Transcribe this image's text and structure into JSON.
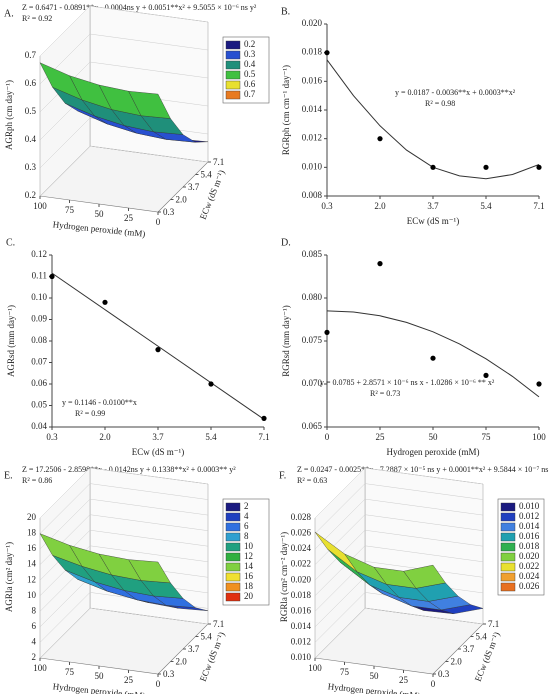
{
  "chart_data": [
    {
      "type": "surface3d",
      "label": "A.",
      "equation": "Z = 0.6471 - 0.0891**x - 0.0004ns y + 0.0051**x² + 9.5055 × 10⁻⁶ ns y²",
      "r2": "R² = 0.92",
      "xlabel": "Hydrogen peroxide (mM)",
      "ylabel": "ECw (dS m⁻¹)",
      "zlabel": "AGRph (cm day⁻¹)",
      "x": [
        0,
        25,
        50,
        75,
        100
      ],
      "y": [
        0.3,
        2.0,
        3.7,
        5.4,
        7.1
      ],
      "z": [
        [
          0.621,
          0.489,
          0.387,
          0.315,
          0.272
        ],
        [
          0.617,
          0.485,
          0.383,
          0.311,
          0.268
        ],
        [
          0.625,
          0.493,
          0.391,
          0.319,
          0.275
        ],
        [
          0.644,
          0.513,
          0.411,
          0.338,
          0.295
        ],
        [
          0.676,
          0.544,
          0.442,
          0.37,
          0.327
        ]
      ],
      "xlim": [
        0,
        100
      ],
      "xticks": [
        0,
        25,
        50,
        75,
        100
      ],
      "ylim": [
        0.3,
        7.1
      ],
      "yticks": [
        0.3,
        {
          "value": 2.0,
          "label": "2.0"
        },
        3.7,
        5.4,
        7.1
      ],
      "zlim": [
        0.2,
        0.7
      ],
      "zticks": [
        0.2,
        0.3,
        0.4,
        0.5,
        0.6,
        0.7
      ],
      "legend": {
        "levels": [
          0.2,
          0.3,
          0.4,
          0.5,
          0.6,
          0.7
        ],
        "colors": [
          "#1a1a80",
          "#2850d0",
          "#1f8f7a",
          "#40c040",
          "#e8e030",
          "#e87a20"
        ]
      }
    },
    {
      "type": "scatter",
      "label": "B.",
      "equation": "y = 0.0187 - 0.0036**x + 0.0003**x²",
      "r2": "R² = 0.98",
      "xlabel": "ECw (dS m⁻¹)",
      "ylabel": "RGRph (cm cm⁻¹ day⁻¹)",
      "x": [
        0.3,
        2.0,
        3.7,
        5.4,
        7.1
      ],
      "values": [
        0.018,
        0.012,
        0.01,
        0.01,
        0.01
      ],
      "fit": {
        "x": [
          0.3,
          1.15,
          2.0,
          2.85,
          3.7,
          4.55,
          5.4,
          6.25,
          7.1
        ],
        "y": [
          0.0175,
          0.015,
          0.0129,
          0.0112,
          0.01,
          0.0094,
          0.0092,
          0.0095,
          0.0102
        ]
      },
      "xlim": [
        0.3,
        7.1
      ],
      "xticks": [
        0.3,
        {
          "value": 2.0,
          "label": "2.0"
        },
        3.7,
        5.4,
        7.1
      ],
      "ylim": [
        0.008,
        0.02
      ],
      "yticks": [
        {
          "value": 0.008,
          "label": "0.008"
        },
        {
          "value": 0.01,
          "label": "0.010"
        },
        {
          "value": 0.012,
          "label": "0.012"
        },
        {
          "value": 0.014,
          "label": "0.014"
        },
        {
          "value": 0.016,
          "label": "0.016"
        },
        {
          "value": 0.018,
          "label": "0.018"
        },
        {
          "value": 0.02,
          "label": "0.020"
        }
      ]
    },
    {
      "type": "scatter",
      "label": "C.",
      "equation": "y = 0.1146 - 0.0100**x",
      "r2": "R² = 0.99",
      "xlabel": "ECw (dS m⁻¹)",
      "ylabel": "AGRsd (mm day⁻¹)",
      "x": [
        0.3,
        2.0,
        3.7,
        5.4,
        7.1
      ],
      "values": [
        0.11,
        0.098,
        0.076,
        0.06,
        0.044
      ],
      "fit": {
        "x": [
          0.3,
          7.1
        ],
        "y": [
          0.1116,
          0.0436
        ]
      },
      "xlim": [
        0.3,
        7.1
      ],
      "xticks": [
        0.3,
        {
          "value": 2.0,
          "label": "2.0"
        },
        3.7,
        5.4,
        7.1
      ],
      "ylim": [
        0.04,
        0.12
      ],
      "yticks": [
        0.04,
        0.05,
        0.06,
        0.07,
        0.08,
        0.09,
        {
          "value": 0.1,
          "label": "0.10"
        },
        0.11,
        0.12
      ]
    },
    {
      "type": "scatter",
      "label": "D.",
      "equation": "y = 0.0785 + 2.8571 × 10⁻⁶ ns x - 1.0286 × 10⁻⁶ ** x²",
      "r2": "R² = 0.73",
      "xlabel": "Hydrogen peroxide (mM)",
      "ylabel": "RGRsd (mm day⁻¹)",
      "x": [
        0,
        25,
        50,
        75,
        100
      ],
      "values": [
        0.076,
        0.084,
        0.073,
        0.071,
        0.07
      ],
      "fit": {
        "x": [
          0,
          12.5,
          25,
          37.5,
          50,
          62.5,
          75,
          87.5,
          100
        ],
        "y": [
          0.0785,
          0.07837,
          0.07793,
          0.07716,
          0.07607,
          0.07466,
          0.07293,
          0.07088,
          0.0685
        ]
      },
      "xlim": [
        0,
        100
      ],
      "xticks": [
        0,
        25,
        50,
        75,
        100
      ],
      "ylim": [
        0.065,
        0.085
      ],
      "yticks": [
        0.065,
        {
          "value": 0.07,
          "label": "0.070"
        },
        0.075,
        {
          "value": 0.08,
          "label": "0.080"
        },
        0.085
      ]
    },
    {
      "type": "surface3d",
      "label": "E.",
      "equation": "Z = 17.2506 - 2.8598**x - 0.0142ns y + 0.1338**x² + 0.0003** y²",
      "r2": "R² = 0.86",
      "xlabel": "Hydrogen peroxide (mM)",
      "ylabel": "ECw (dS m⁻¹)",
      "zlabel": "AGRla (cm² day⁻¹)",
      "x": [
        0,
        25,
        50,
        75,
        100
      ],
      "y": [
        0.3,
        2.0,
        3.7,
        5.4,
        7.1
      ],
      "z": [
        [
          16.4,
          12.1,
          8.5,
          5.7,
          3.7
        ],
        [
          16.2,
          11.9,
          8.3,
          5.5,
          3.5
        ],
        [
          16.4,
          12.1,
          8.5,
          5.7,
          3.7
        ],
        [
          17.0,
          12.7,
          9.1,
          6.3,
          4.3
        ],
        [
          18.0,
          13.6,
          10.1,
          7.3,
          5.3
        ]
      ],
      "xlim": [
        0,
        100
      ],
      "xticks": [
        0,
        25,
        50,
        75,
        100
      ],
      "ylim": [
        0.3,
        7.1
      ],
      "yticks": [
        0.3,
        {
          "value": 2.0,
          "label": "2.0"
        },
        3.7,
        5.4,
        7.1
      ],
      "zlim": [
        2,
        20
      ],
      "zticks": [
        2,
        4,
        6,
        8,
        10,
        12,
        14,
        16,
        18,
        20
      ],
      "legend": {
        "levels": [
          2,
          4,
          6,
          8,
          10,
          12,
          14,
          16,
          18,
          20
        ],
        "colors": [
          "#1a1a80",
          "#2040c0",
          "#3070e0",
          "#30a0d0",
          "#20a080",
          "#30b040",
          "#80d040",
          "#f0e030",
          "#f09020",
          "#e03010"
        ]
      }
    },
    {
      "type": "surface3d",
      "label": "F.",
      "equation": "Z = 0.0247 - 0.0025**x - 7.2887 × 10⁻⁵ ns y + 0.0001**x² + 9.5844 × 10⁻⁷ ns y²",
      "r2": "R² = 0.63",
      "xlabel": "Hydrogen peroxide (mM)",
      "ylabel": "ECw (dS m⁻¹)",
      "zlabel": "RGRla (cm² cm⁻² day⁻¹)",
      "x": [
        0,
        25,
        50,
        75,
        100
      ],
      "y": [
        0.3,
        2.0,
        3.7,
        5.4,
        7.1
      ],
      "z": [
        [
          0.024,
          0.0201,
          0.0168,
          0.0141,
          0.012
        ],
        [
          0.0227,
          0.0189,
          0.0156,
          0.0129,
          0.0108
        ],
        [
          0.0227,
          0.0189,
          0.0156,
          0.0129,
          0.0107
        ],
        [
          0.0239,
          0.02,
          0.0167,
          0.014,
          0.0119
        ],
        [
          0.0262,
          0.0224,
          0.0191,
          0.0164,
          0.0143
        ]
      ],
      "xlim": [
        0,
        100
      ],
      "xticks": [
        0,
        25,
        50,
        75,
        100
      ],
      "ylim": [
        0.3,
        7.1
      ],
      "yticks": [
        0.3,
        {
          "value": 2.0,
          "label": "2.0"
        },
        3.7,
        5.4,
        7.1
      ],
      "zlim": [
        0.01,
        0.028
      ],
      "zticks": [
        {
          "value": 0.01,
          "label": "0.010"
        },
        0.012,
        0.014,
        0.016,
        0.018,
        {
          "value": 0.02,
          "label": "0.020"
        },
        0.022,
        0.024,
        0.026,
        0.028
      ],
      "legend": {
        "levels": [
          {
            "value": 0.01,
            "label": "0.010"
          },
          0.012,
          0.014,
          0.016,
          0.018,
          {
            "value": 0.02,
            "label": "0.020"
          },
          0.022,
          0.024,
          0.026
        ],
        "colors": [
          "#1a1a80",
          "#2040c0",
          "#4080e0",
          "#20a0b0",
          "#30b050",
          "#80d040",
          "#e8e030",
          "#f0a030",
          "#e87020"
        ]
      }
    }
  ]
}
